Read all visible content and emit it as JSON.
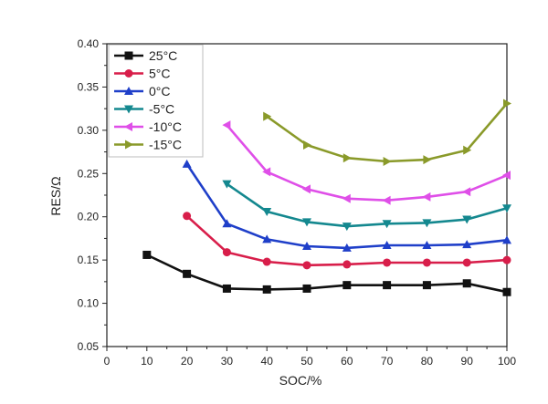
{
  "chart_data": {
    "type": "line",
    "xlabel": "SOC/%",
    "ylabel": "RES/Ω",
    "xlim": [
      0,
      100
    ],
    "ylim": [
      0.05,
      0.4
    ],
    "xticks": [
      "0",
      "10",
      "20",
      "30",
      "40",
      "50",
      "60",
      "70",
      "80",
      "90",
      "100"
    ],
    "yticks": [
      "0.05",
      "0.10",
      "0.15",
      "0.20",
      "0.25",
      "0.30",
      "0.35",
      "0.40"
    ],
    "grid": false,
    "legend_position": "top-left",
    "series": [
      {
        "name": "25°C",
        "color": "#111111",
        "marker": "square",
        "points": [
          [
            10,
            0.156
          ],
          [
            20,
            0.134
          ],
          [
            30,
            0.117
          ],
          [
            40,
            0.116
          ],
          [
            50,
            0.117
          ],
          [
            60,
            0.121
          ],
          [
            70,
            0.121
          ],
          [
            80,
            0.121
          ],
          [
            90,
            0.123
          ],
          [
            100,
            0.113
          ]
        ]
      },
      {
        "name": "5°C",
        "color": "#d81e4a",
        "marker": "circle",
        "points": [
          [
            20,
            0.201
          ],
          [
            30,
            0.159
          ],
          [
            40,
            0.148
          ],
          [
            50,
            0.144
          ],
          [
            60,
            0.145
          ],
          [
            70,
            0.147
          ],
          [
            80,
            0.147
          ],
          [
            90,
            0.147
          ],
          [
            100,
            0.15
          ]
        ]
      },
      {
        "name": "0°C",
        "color": "#1f3fc9",
        "marker": "triangle-up",
        "points": [
          [
            20,
            0.261
          ],
          [
            30,
            0.192
          ],
          [
            40,
            0.174
          ],
          [
            50,
            0.166
          ],
          [
            60,
            0.164
          ],
          [
            70,
            0.167
          ],
          [
            80,
            0.167
          ],
          [
            90,
            0.168
          ],
          [
            100,
            0.173
          ]
        ]
      },
      {
        "name": "-5°C",
        "color": "#14888f",
        "marker": "triangle-down",
        "points": [
          [
            30,
            0.238
          ],
          [
            40,
            0.206
          ],
          [
            50,
            0.194
          ],
          [
            60,
            0.189
          ],
          [
            70,
            0.192
          ],
          [
            80,
            0.193
          ],
          [
            90,
            0.197
          ],
          [
            100,
            0.21
          ]
        ]
      },
      {
        "name": "-10°C",
        "color": "#df4fe8",
        "marker": "triangle-left",
        "points": [
          [
            30,
            0.306
          ],
          [
            40,
            0.252
          ],
          [
            50,
            0.232
          ],
          [
            60,
            0.221
          ],
          [
            70,
            0.219
          ],
          [
            80,
            0.223
          ],
          [
            90,
            0.229
          ],
          [
            100,
            0.248
          ]
        ]
      },
      {
        "name": "-15°C",
        "color": "#8a9a2a",
        "marker": "triangle-right",
        "points": [
          [
            40,
            0.316
          ],
          [
            50,
            0.283
          ],
          [
            60,
            0.268
          ],
          [
            70,
            0.264
          ],
          [
            80,
            0.266
          ],
          [
            90,
            0.277
          ],
          [
            100,
            0.331
          ]
        ]
      }
    ]
  }
}
